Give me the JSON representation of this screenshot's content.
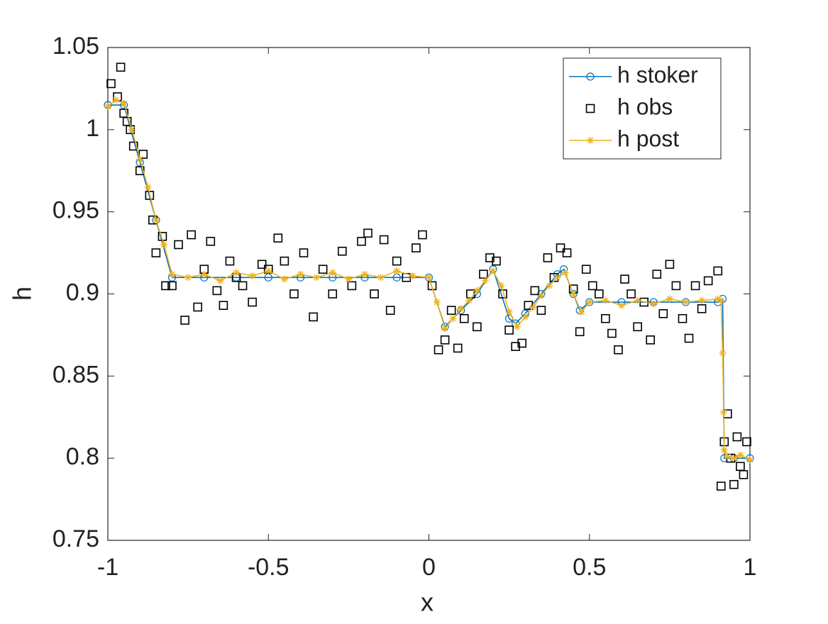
{
  "chart_data": {
    "type": "line",
    "xlabel": "x",
    "ylabel": "h",
    "xlim": [
      -1,
      1
    ],
    "xticks": [
      -1,
      -0.5,
      0,
      0.5,
      1
    ],
    "ylim": [
      0.75,
      1.05
    ],
    "yticks": [
      0.75,
      0.8,
      0.85,
      0.9,
      0.95,
      1,
      1.05
    ],
    "legend": "top-right",
    "series": [
      {
        "name": "h stoker",
        "color": "#0072bd",
        "marker": "circle",
        "line": true,
        "x": [
          -1,
          -0.95,
          -0.9,
          -0.85,
          -0.8,
          -0.7,
          -0.6,
          -0.5,
          -0.4,
          -0.3,
          -0.2,
          -0.1,
          0,
          0.05,
          0.1,
          0.15,
          0.2,
          0.25,
          0.27,
          0.3,
          0.35,
          0.4,
          0.42,
          0.45,
          0.47,
          0.5,
          0.6,
          0.7,
          0.8,
          0.9,
          0.915,
          0.92,
          0.95,
          1
        ],
        "values": [
          1.015,
          1.015,
          0.98,
          0.945,
          0.91,
          0.91,
          0.91,
          0.91,
          0.91,
          0.91,
          0.91,
          0.91,
          0.91,
          0.88,
          0.89,
          0.9,
          0.915,
          0.885,
          0.882,
          0.888,
          0.9,
          0.912,
          0.915,
          0.9,
          0.89,
          0.895,
          0.895,
          0.895,
          0.895,
          0.895,
          0.897,
          0.8,
          0.8,
          0.8
        ]
      },
      {
        "name": "h obs",
        "color": "#000000",
        "marker": "square",
        "line": false,
        "x": [
          -0.99,
          -0.97,
          -0.96,
          -0.95,
          -0.94,
          -0.93,
          -0.92,
          -0.9,
          -0.89,
          -0.87,
          -0.86,
          -0.85,
          -0.83,
          -0.82,
          -0.8,
          -0.78,
          -0.76,
          -0.74,
          -0.72,
          -0.7,
          -0.68,
          -0.66,
          -0.64,
          -0.62,
          -0.6,
          -0.58,
          -0.55,
          -0.52,
          -0.5,
          -0.47,
          -0.45,
          -0.42,
          -0.39,
          -0.36,
          -0.33,
          -0.3,
          -0.27,
          -0.24,
          -0.21,
          -0.19,
          -0.17,
          -0.14,
          -0.12,
          -0.1,
          -0.07,
          -0.04,
          -0.02,
          0.01,
          0.03,
          0.05,
          0.07,
          0.09,
          0.11,
          0.13,
          0.15,
          0.17,
          0.19,
          0.21,
          0.23,
          0.25,
          0.27,
          0.29,
          0.31,
          0.33,
          0.35,
          0.37,
          0.39,
          0.41,
          0.43,
          0.45,
          0.47,
          0.49,
          0.51,
          0.53,
          0.55,
          0.57,
          0.59,
          0.61,
          0.63,
          0.65,
          0.67,
          0.69,
          0.71,
          0.73,
          0.75,
          0.77,
          0.79,
          0.81,
          0.83,
          0.85,
          0.87,
          0.9,
          0.91,
          0.92,
          0.93,
          0.94,
          0.95,
          0.96,
          0.97,
          0.98,
          0.99
        ],
        "values": [
          1.028,
          1.02,
          1.038,
          1.01,
          1.005,
          1.0,
          0.99,
          0.975,
          0.985,
          0.96,
          0.945,
          0.925,
          0.935,
          0.905,
          0.905,
          0.93,
          0.884,
          0.936,
          0.892,
          0.915,
          0.932,
          0.902,
          0.893,
          0.92,
          0.91,
          0.905,
          0.895,
          0.918,
          0.915,
          0.934,
          0.92,
          0.9,
          0.925,
          0.886,
          0.915,
          0.9,
          0.926,
          0.905,
          0.932,
          0.937,
          0.9,
          0.933,
          0.89,
          0.92,
          0.91,
          0.928,
          0.936,
          0.905,
          0.866,
          0.872,
          0.89,
          0.867,
          0.885,
          0.9,
          0.88,
          0.912,
          0.922,
          0.92,
          0.9,
          0.878,
          0.868,
          0.87,
          0.893,
          0.902,
          0.89,
          0.922,
          0.91,
          0.928,
          0.925,
          0.903,
          0.877,
          0.915,
          0.905,
          0.9,
          0.885,
          0.876,
          0.866,
          0.909,
          0.9,
          0.88,
          0.895,
          0.872,
          0.912,
          0.888,
          0.918,
          0.905,
          0.885,
          0.873,
          0.905,
          0.891,
          0.908,
          0.914,
          0.783,
          0.81,
          0.827,
          0.8,
          0.784,
          0.813,
          0.795,
          0.79,
          0.81
        ]
      },
      {
        "name": "h post",
        "color": "#edb120",
        "marker": "asterisk",
        "line": true,
        "x": [
          -1,
          -0.975,
          -0.95,
          -0.925,
          -0.9,
          -0.875,
          -0.85,
          -0.825,
          -0.8,
          -0.75,
          -0.7,
          -0.65,
          -0.6,
          -0.55,
          -0.5,
          -0.45,
          -0.4,
          -0.35,
          -0.3,
          -0.25,
          -0.2,
          -0.15,
          -0.1,
          -0.05,
          0,
          0.025,
          0.05,
          0.075,
          0.1,
          0.125,
          0.15,
          0.175,
          0.2,
          0.225,
          0.25,
          0.275,
          0.3,
          0.325,
          0.35,
          0.375,
          0.4,
          0.425,
          0.45,
          0.475,
          0.5,
          0.55,
          0.6,
          0.65,
          0.7,
          0.75,
          0.8,
          0.85,
          0.9,
          0.91,
          0.915,
          0.918,
          0.92,
          0.93,
          0.95,
          0.97,
          1
        ],
        "values": [
          1.014,
          1.018,
          1.016,
          1.0,
          0.982,
          0.965,
          0.945,
          0.93,
          0.912,
          0.91,
          0.912,
          0.908,
          0.913,
          0.911,
          0.914,
          0.909,
          0.912,
          0.91,
          0.913,
          0.909,
          0.912,
          0.91,
          0.914,
          0.911,
          0.91,
          0.895,
          0.879,
          0.885,
          0.891,
          0.896,
          0.902,
          0.908,
          0.914,
          0.905,
          0.889,
          0.88,
          0.886,
          0.892,
          0.899,
          0.905,
          0.91,
          0.913,
          0.9,
          0.889,
          0.895,
          0.896,
          0.893,
          0.896,
          0.894,
          0.897,
          0.895,
          0.896,
          0.897,
          0.896,
          0.864,
          0.828,
          0.805,
          0.801,
          0.8,
          0.802,
          0.799
        ]
      }
    ]
  }
}
